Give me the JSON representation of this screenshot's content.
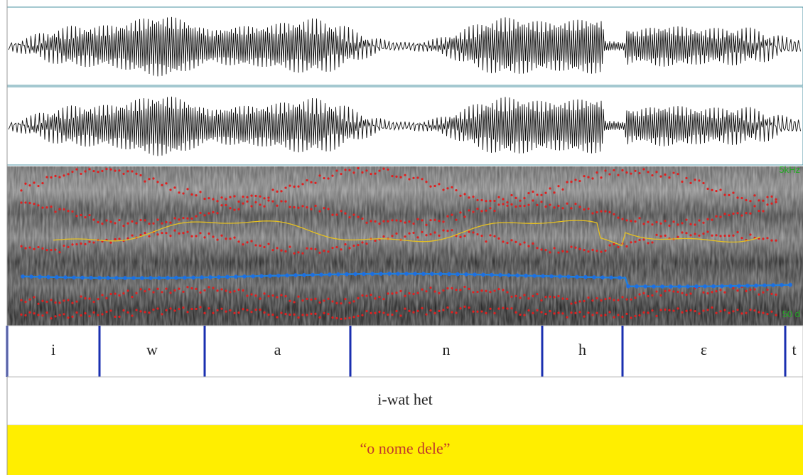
{
  "spectrogram": {
    "top_label": "5kHz",
    "bottom_label": "50 d"
  },
  "segments": [
    "i",
    "w",
    "a",
    "n",
    "h",
    "ɛ",
    "t"
  ],
  "word": "i-wat het",
  "translation": "“o nome dele”"
}
